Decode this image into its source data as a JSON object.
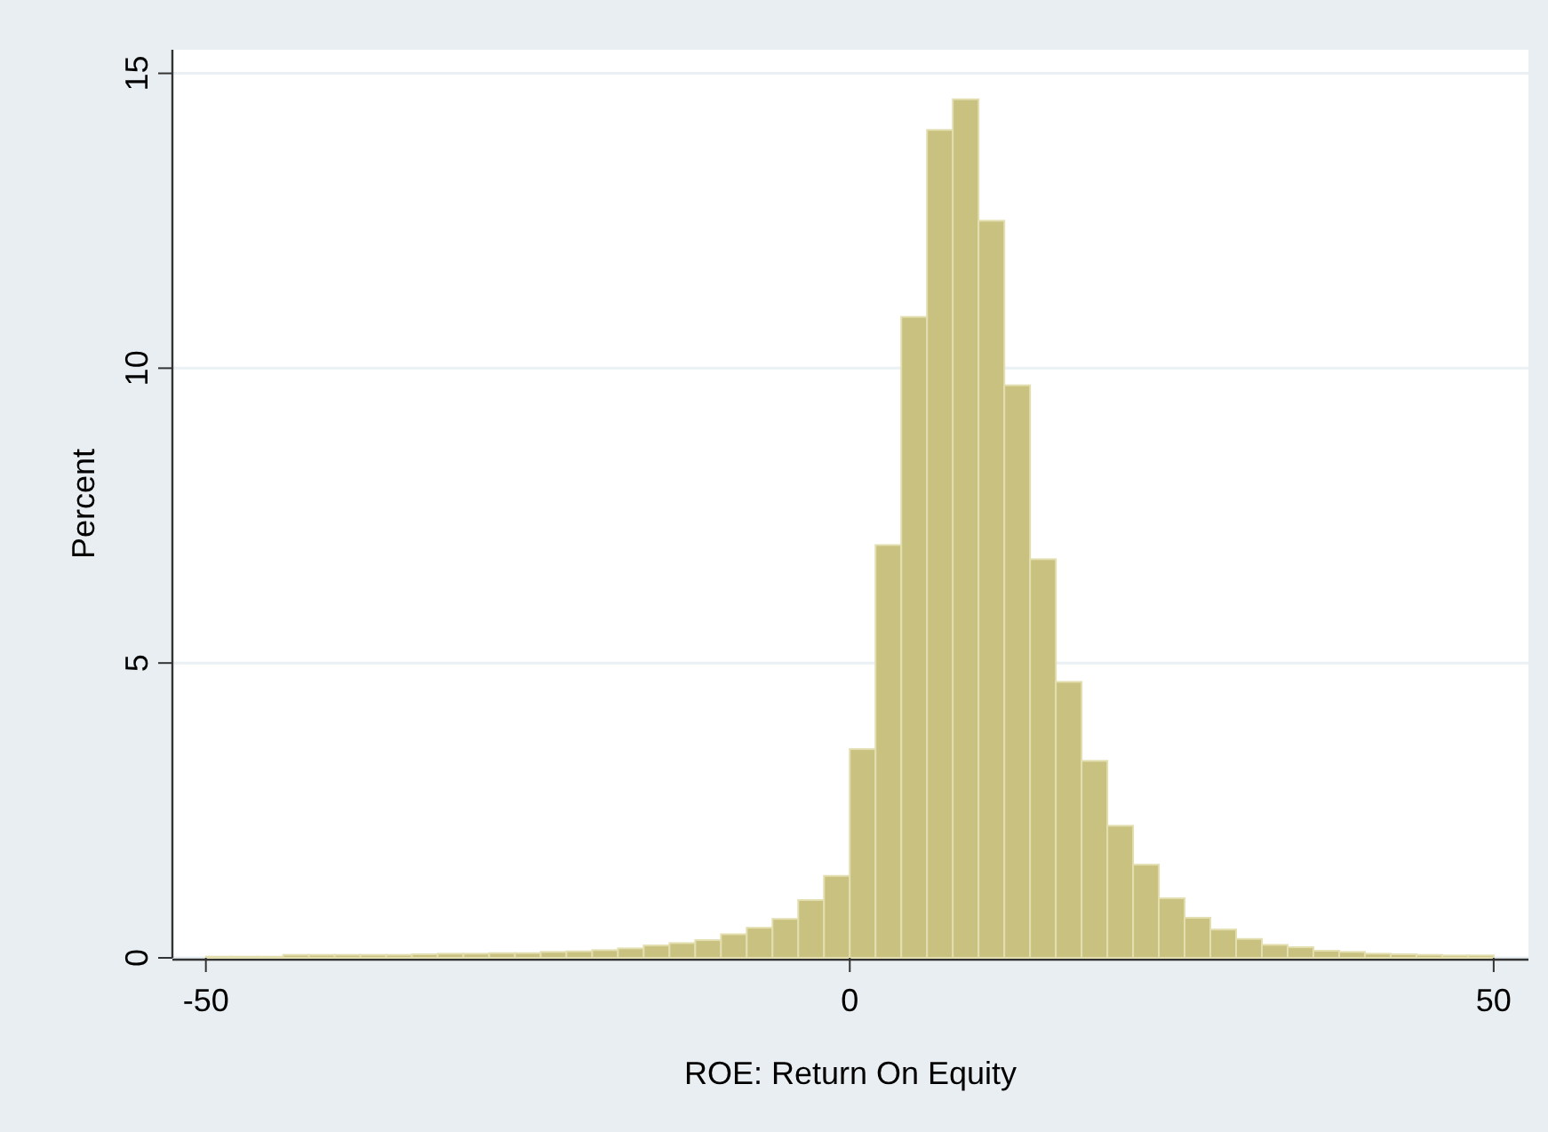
{
  "chart_data": {
    "type": "histogram",
    "xlabel": "ROE: Return On Equity",
    "ylabel": "Percent",
    "bins": [
      -50,
      -48,
      -46,
      -44,
      -42,
      -40,
      -38,
      -36,
      -34,
      -32,
      -30,
      -28,
      -26,
      -24,
      -22,
      -20,
      -18,
      -16,
      -14,
      -12,
      -10,
      -8,
      -6,
      -4,
      -2,
      0,
      2,
      4,
      6,
      8,
      10,
      12,
      14,
      16,
      18,
      20,
      22,
      24,
      26,
      28,
      30,
      32,
      34,
      36,
      38,
      40,
      42,
      44,
      46,
      48,
      50
    ],
    "values": [
      0.02,
      0.02,
      0.02,
      0.05,
      0.05,
      0.05,
      0.05,
      0.05,
      0.06,
      0.07,
      0.07,
      0.08,
      0.08,
      0.1,
      0.11,
      0.13,
      0.16,
      0.21,
      0.25,
      0.3,
      0.4,
      0.51,
      0.66,
      0.98,
      1.39,
      3.54,
      7.0,
      10.87,
      14.04,
      14.56,
      12.5,
      9.71,
      6.76,
      4.68,
      3.34,
      2.24,
      1.58,
      1.01,
      0.68,
      0.48,
      0.32,
      0.22,
      0.18,
      0.12,
      0.1,
      0.07,
      0.06,
      0.05,
      0.04,
      0.04
    ],
    "color": "#c9c17f",
    "xlim": [
      -52.6,
      52.7
    ],
    "xticks": [
      -50,
      0,
      50
    ],
    "ylim": [
      0,
      15.4
    ],
    "yticks": [
      0,
      5,
      10,
      15
    ],
    "grid": "y"
  }
}
